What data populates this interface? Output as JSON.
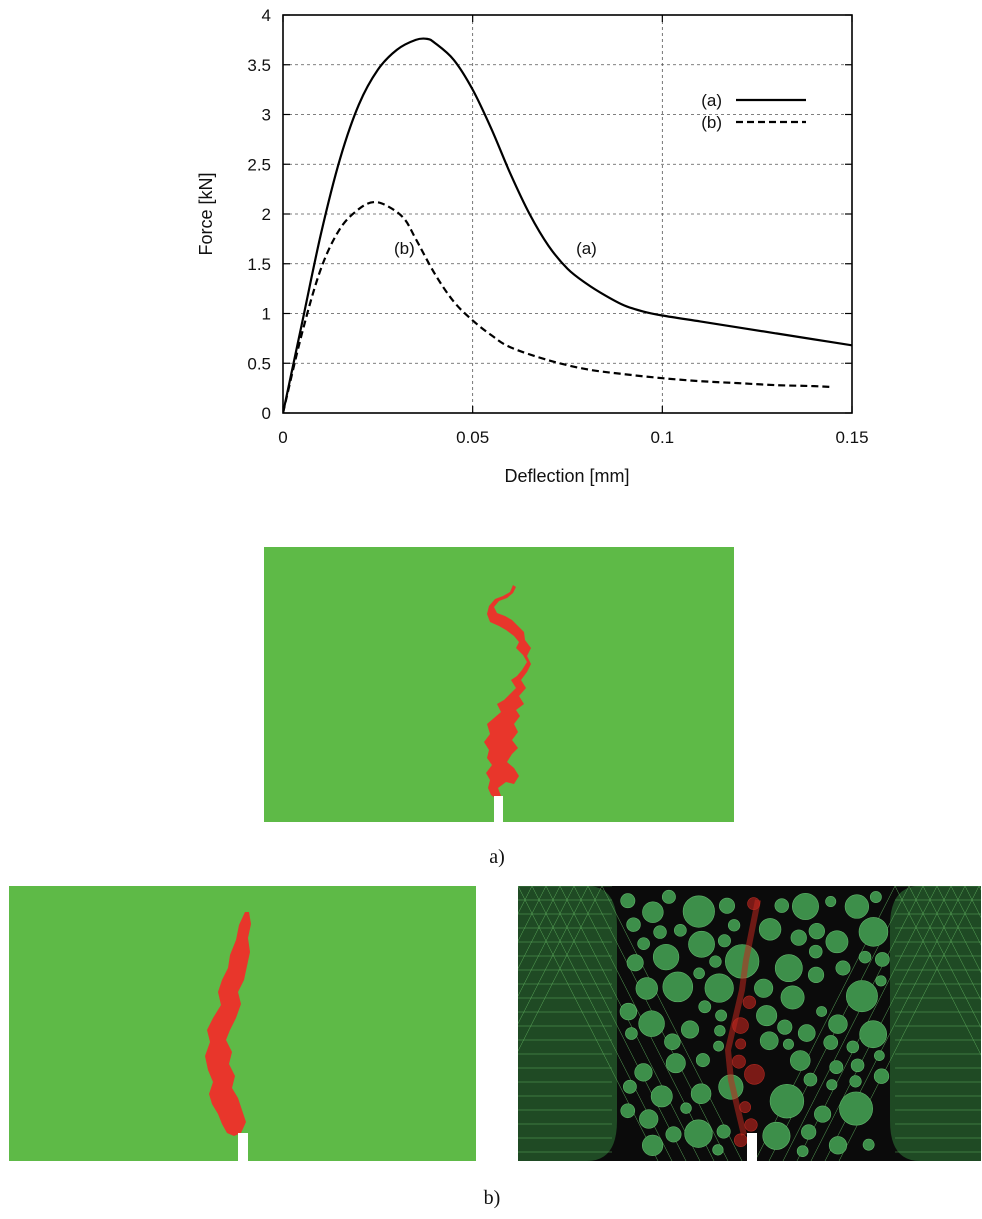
{
  "chart_data": {
    "type": "line",
    "xlabel": "Deflection [mm]",
    "ylabel": "Force [kN]",
    "xlim": [
      0,
      0.15
    ],
    "ylim": [
      0,
      4
    ],
    "x_ticks": [
      0,
      0.05,
      0.1,
      0.15
    ],
    "x_tick_labels": [
      "0",
      "0.05",
      "0.1",
      "0.15"
    ],
    "y_ticks": [
      0,
      0.5,
      1,
      1.5,
      2,
      2.5,
      3,
      3.5,
      4
    ],
    "y_tick_labels": [
      "0",
      "0.5",
      "1",
      "1.5",
      "2",
      "2.5",
      "3",
      "3.5",
      "4"
    ],
    "grid": true,
    "legend_position": "top-right",
    "series": [
      {
        "name": "(a)",
        "style": "solid",
        "x": [
          0,
          0.005,
          0.01,
          0.015,
          0.02,
          0.025,
          0.03,
          0.035,
          0.038,
          0.04,
          0.045,
          0.05,
          0.055,
          0.06,
          0.065,
          0.07,
          0.075,
          0.08,
          0.085,
          0.09,
          0.095,
          0.1,
          0.11,
          0.12,
          0.13,
          0.14,
          0.15
        ],
        "y": [
          0,
          0.9,
          1.8,
          2.55,
          3.1,
          3.45,
          3.65,
          3.75,
          3.76,
          3.72,
          3.55,
          3.25,
          2.85,
          2.4,
          2.0,
          1.68,
          1.45,
          1.3,
          1.18,
          1.08,
          1.02,
          0.98,
          0.92,
          0.86,
          0.8,
          0.74,
          0.68
        ]
      },
      {
        "name": "(b)",
        "style": "dashed",
        "x": [
          0,
          0.005,
          0.01,
          0.015,
          0.02,
          0.024,
          0.028,
          0.032,
          0.035,
          0.04,
          0.045,
          0.05,
          0.055,
          0.06,
          0.07,
          0.08,
          0.09,
          0.1,
          0.11,
          0.12,
          0.13,
          0.14,
          0.145
        ],
        "y": [
          0,
          0.8,
          1.45,
          1.85,
          2.05,
          2.12,
          2.07,
          1.95,
          1.75,
          1.4,
          1.12,
          0.93,
          0.78,
          0.66,
          0.53,
          0.44,
          0.39,
          0.35,
          0.32,
          0.3,
          0.28,
          0.27,
          0.26
        ]
      }
    ],
    "annotations": [
      {
        "text": "(a)",
        "x": 0.08,
        "y": 1.6
      },
      {
        "text": "(b)",
        "x": 0.032,
        "y": 1.6
      }
    ]
  },
  "captions": {
    "a": "a)",
    "b": "b)"
  },
  "colors": {
    "green": "#5eba47",
    "red": "#e8362b",
    "black": "#0a0a0a",
    "mesh": "#5aa85a"
  },
  "icons": {
    "notch": "white-notch"
  }
}
